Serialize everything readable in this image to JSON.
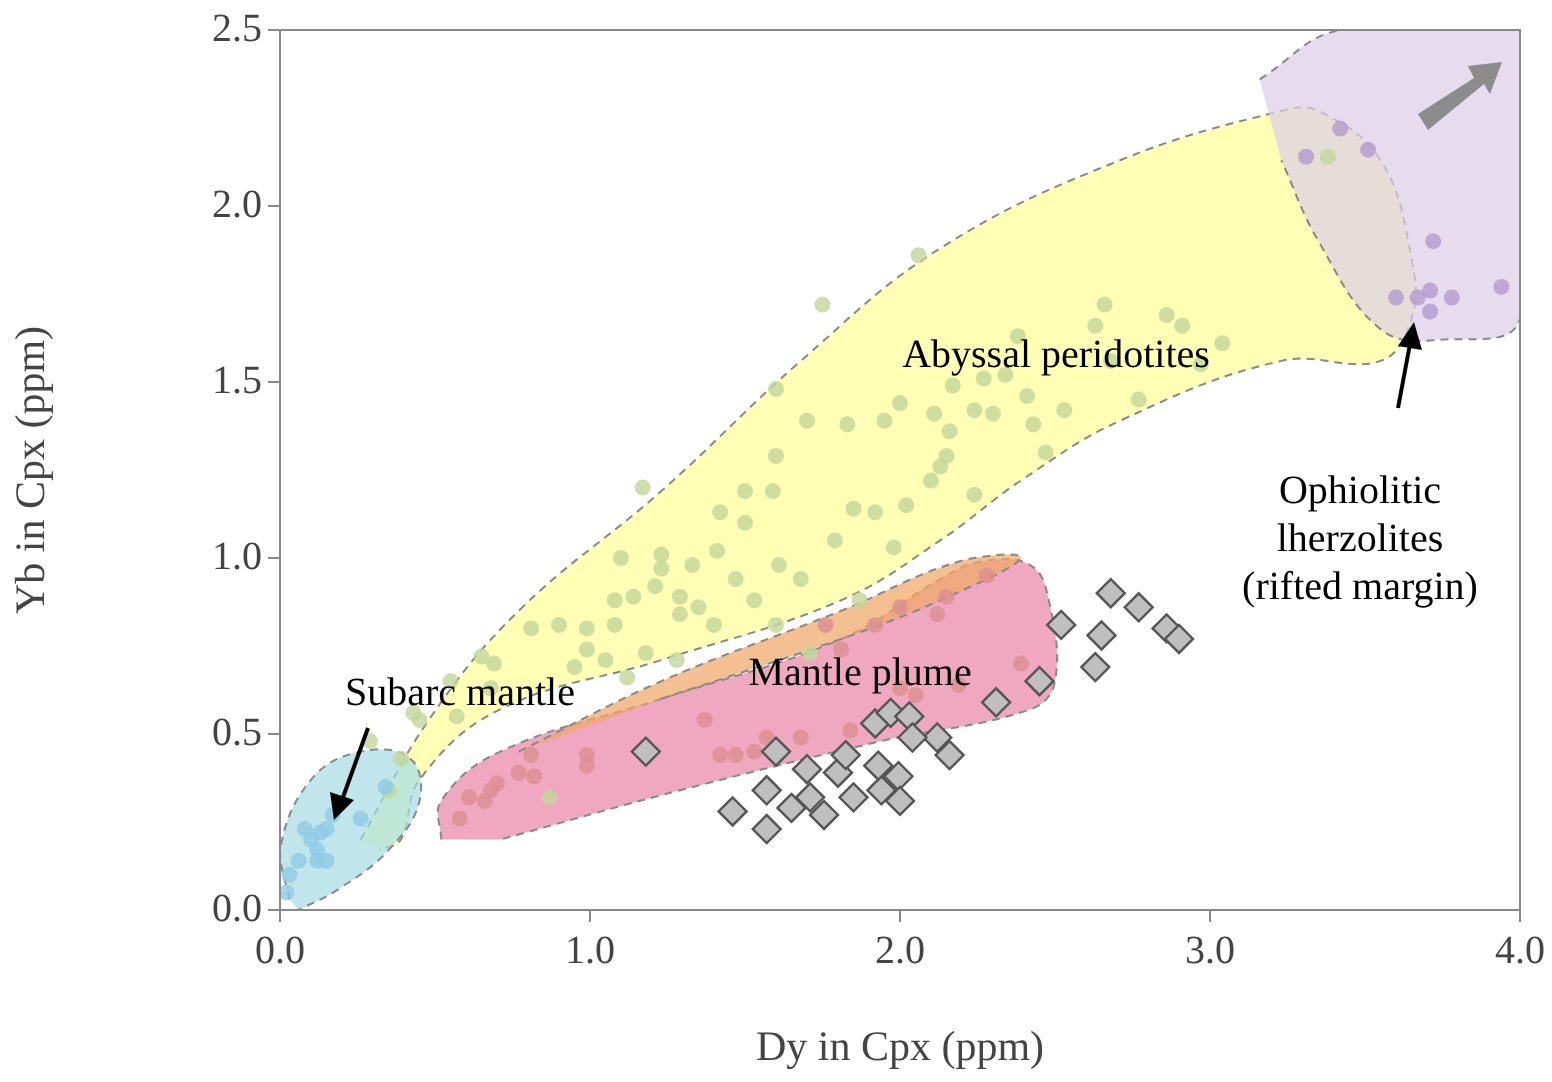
{
  "chart_data": {
    "type": "scatter",
    "xlabel": "Dy in Cpx (ppm)",
    "ylabel": "Yb in Cpx (ppm)",
    "xlim": [
      0,
      4
    ],
    "ylim": [
      0,
      2.5
    ],
    "xticks": [
      {
        "value": 0,
        "label": "0.0"
      },
      {
        "value": 1,
        "label": "1.0"
      },
      {
        "value": 2,
        "label": "2.0"
      },
      {
        "value": 3,
        "label": "3.0"
      },
      {
        "value": 4,
        "label": "4.0"
      }
    ],
    "yticks": [
      {
        "value": 0,
        "label": "0.0"
      },
      {
        "value": 0.5,
        "label": "0.5"
      },
      {
        "value": 1,
        "label": "1.0"
      },
      {
        "value": 1.5,
        "label": "1.5"
      },
      {
        "value": 2,
        "label": "2.0"
      },
      {
        "value": 2.5,
        "label": "2.5"
      }
    ],
    "grid": false,
    "legend": false,
    "series": [
      {
        "type": "area",
        "color": "#ffff99",
        "line_style": "dashed",
        "x": [
          0.26,
          0.48,
          0.77,
          1.23,
          1.68,
          2.13,
          2.71,
          3.23,
          3.35,
          3.55,
          3.65,
          3.65,
          3.55,
          3.23,
          2.71,
          2.39,
          2.13,
          1.81,
          1.23,
          0.71,
          0.45,
          0.39,
          0.32
        ],
        "values": [
          0.2,
          0.54,
          0.85,
          1.19,
          1.56,
          1.88,
          2.13,
          2.27,
          2.27,
          2.13,
          1.85,
          1.68,
          1.56,
          1.56,
          1.39,
          1.22,
          1.05,
          0.88,
          0.71,
          0.57,
          0.37,
          0.2,
          0.17
        ]
      },
      {
        "type": "area",
        "color": "#e986a8",
        "line_style": "dashed",
        "x": [
          0.52,
          0.52,
          0.71,
          1.23,
          1.81,
          2.13,
          2.26,
          2.42,
          2.48,
          2.5,
          2.42,
          1.94,
          1.29,
          0.71
        ],
        "values": [
          0.2,
          0.31,
          0.45,
          0.6,
          0.77,
          0.94,
          0.99,
          0.98,
          0.88,
          0.65,
          0.57,
          0.48,
          0.34,
          0.2
        ]
      },
      {
        "type": "area",
        "color": "#f0a868",
        "line_style": "dashed",
        "x": [
          0.77,
          1.23,
          1.81,
          2.19,
          2.39,
          2.13,
          1.81,
          1.23
        ],
        "values": [
          0.45,
          0.65,
          0.85,
          0.99,
          1.0,
          0.88,
          0.77,
          0.6
        ]
      },
      {
        "type": "area",
        "color": "#a8dde4",
        "line_style": "dashed",
        "x": [
          0.03,
          0,
          0.1,
          0.26,
          0.42,
          0.45,
          0.35,
          0.19,
          0.06
        ],
        "values": [
          0.03,
          0.17,
          0.37,
          0.45,
          0.43,
          0.31,
          0.17,
          0.06,
          0
        ]
      },
      {
        "type": "area",
        "color": "#dccfe6",
        "line_style": "dashed",
        "x": [
          3.16,
          3.42,
          4.0,
          4.0,
          3.74,
          3.55,
          3.35,
          3.23
        ],
        "values": [
          2.36,
          2.5,
          2.5,
          1.68,
          1.62,
          1.65,
          1.9,
          2.13
        ]
      },
      {
        "type": "scatter",
        "marker": "circle",
        "color": "#c3d69b",
        "x": [
          2.06,
          1.75,
          1.17,
          1.6,
          1.7,
          1.83,
          1.95,
          2.0,
          1.6,
          1.5,
          1.59,
          1.42,
          1.5,
          1.23,
          1.1,
          1.23,
          1.33,
          1.41,
          1.47,
          1.61,
          1.68,
          1.79,
          1.85,
          1.92,
          2.02,
          2.1,
          2.15,
          1.98,
          1.08,
          1.14,
          1.21,
          1.29,
          1.35,
          1.29,
          1.4,
          1.53,
          1.6,
          0.9,
          0.99,
          1.08,
          0.81,
          0.99,
          0.95,
          1.05,
          1.18,
          1.28,
          1.12,
          0.69,
          0.65,
          0.55,
          0.43,
          1.87,
          1.71,
          2.66,
          2.86,
          2.91,
          3.04,
          2.63,
          2.38,
          2.53,
          2.47,
          2.43,
          2.3,
          2.24,
          2.17,
          2.11,
          2.27,
          2.34,
          2.41,
          2.24,
          2.16,
          2.13,
          0.39,
          0.29,
          0.45,
          0.57,
          0.35,
          0.87,
          0.68,
          2.97,
          2.68,
          2.77,
          3.38
        ],
        "values": [
          1.86,
          1.72,
          1.2,
          1.48,
          1.39,
          1.38,
          1.39,
          1.44,
          1.29,
          1.19,
          1.19,
          1.13,
          1.1,
          1.01,
          1.0,
          0.97,
          0.98,
          1.02,
          0.94,
          0.98,
          0.94,
          1.05,
          1.14,
          1.13,
          1.15,
          1.22,
          1.29,
          1.03,
          0.88,
          0.89,
          0.92,
          0.89,
          0.86,
          0.84,
          0.81,
          0.88,
          0.81,
          0.81,
          0.8,
          0.81,
          0.8,
          0.74,
          0.69,
          0.71,
          0.73,
          0.71,
          0.66,
          0.7,
          0.72,
          0.65,
          0.56,
          0.88,
          0.73,
          1.72,
          1.69,
          1.66,
          1.61,
          1.66,
          1.63,
          1.42,
          1.3,
          1.38,
          1.41,
          1.42,
          1.49,
          1.41,
          1.51,
          1.52,
          1.46,
          1.18,
          1.36,
          1.26,
          0.43,
          0.48,
          0.54,
          0.55,
          0.34,
          0.32,
          0.63,
          1.55,
          1.56,
          1.45,
          2.14
        ]
      },
      {
        "type": "scatter",
        "marker": "circle",
        "color": "#dc9090",
        "x": [
          0.58,
          0.61,
          0.68,
          0.7,
          0.77,
          0.82,
          0.81,
          0.99,
          0.99,
          0.66,
          1.42,
          1.47,
          1.53,
          1.57,
          1.68,
          1.84,
          1.37,
          1.76,
          1.92,
          2.0,
          2.12,
          2.15,
          2.28,
          1.81,
          2.0,
          2.05,
          2.19,
          2.39
        ],
        "values": [
          0.26,
          0.32,
          0.34,
          0.36,
          0.39,
          0.38,
          0.44,
          0.44,
          0.41,
          0.31,
          0.44,
          0.44,
          0.45,
          0.49,
          0.49,
          0.51,
          0.54,
          0.81,
          0.81,
          0.86,
          0.84,
          0.89,
          0.95,
          0.74,
          0.63,
          0.61,
          0.64,
          0.7
        ]
      },
      {
        "type": "scatter",
        "marker": "circle",
        "color": "#8ecae6",
        "x": [
          0.02,
          0.03,
          0.06,
          0.1,
          0.13,
          0.15,
          0.12,
          0.15,
          0.17,
          0.26,
          0.34,
          0.08,
          0.12
        ],
        "values": [
          0.05,
          0.1,
          0.14,
          0.2,
          0.22,
          0.23,
          0.17,
          0.14,
          0.27,
          0.26,
          0.35,
          0.23,
          0.14
        ]
      },
      {
        "type": "scatter",
        "marker": "circle",
        "color": "#b39ccf",
        "x": [
          3.42,
          3.31,
          3.51,
          3.72,
          3.6,
          3.67,
          3.71,
          3.71,
          3.78,
          3.94
        ],
        "values": [
          2.22,
          2.14,
          2.16,
          1.9,
          1.74,
          1.74,
          1.76,
          1.7,
          1.74,
          1.77
        ]
      },
      {
        "type": "scatter",
        "marker": "diamond",
        "color": "#bfbfbf",
        "x": [
          1.18,
          1.6,
          1.46,
          1.57,
          1.57,
          1.65,
          1.71,
          1.755,
          1.7,
          1.8,
          1.85,
          1.825,
          1.92,
          1.97,
          1.94,
          1.995,
          2.03,
          2.12,
          2.16,
          2.31,
          2.45,
          2.52,
          2.68,
          2.65,
          2.63,
          2.77,
          2.86,
          2.9,
          1.93,
          2.0,
          2.04
        ],
        "values": [
          0.45,
          0.45,
          0.28,
          0.23,
          0.34,
          0.29,
          0.32,
          0.27,
          0.4,
          0.39,
          0.32,
          0.44,
          0.53,
          0.56,
          0.34,
          0.38,
          0.55,
          0.49,
          0.44,
          0.59,
          0.65,
          0.81,
          0.9,
          0.78,
          0.69,
          0.86,
          0.8,
          0.77,
          0.41,
          0.31,
          0.49
        ]
      }
    ],
    "annotations": [
      "Abyssal peridotites",
      "Mantle plume",
      "Subarc mantle",
      "Ophiolitic\nlherzolites\n(rifted margin)"
    ]
  }
}
